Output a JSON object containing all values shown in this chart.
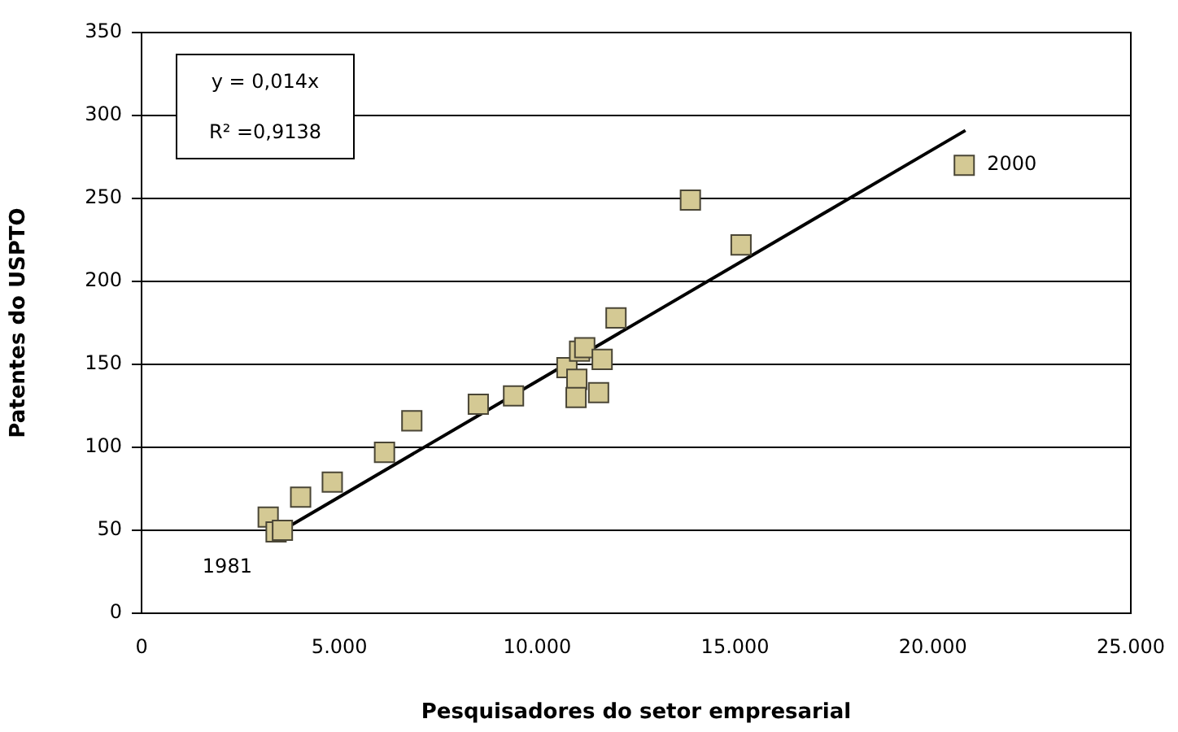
{
  "chart_data": {
    "type": "scatter",
    "xlabel": "Pesquisadores do setor empresarial",
    "ylabel": "Patentes do USPTO",
    "series": [
      {
        "type": "scatter",
        "color": "#d4c994",
        "marker": "square",
        "x": [
          3200,
          3400,
          3560,
          4020,
          4820,
          6140,
          6830,
          8510,
          9400,
          10750,
          11070,
          11200,
          11640,
          11000,
          10980,
          11550,
          11990,
          13870,
          15150,
          20790
        ],
        "values": [
          58,
          49,
          50,
          70,
          79,
          97,
          116,
          126,
          131,
          148,
          158,
          160,
          153,
          141,
          130,
          133,
          178,
          249,
          222,
          270
        ]
      },
      {
        "type": "line",
        "color": "#000000",
        "marker": "none",
        "line_style": "solid",
        "x": [
          3200,
          20820
        ],
        "values": [
          45,
          291
        ]
      }
    ],
    "xlim": [
      0,
      25000
    ],
    "xticks": [
      0,
      {
        "value": 5000,
        "label": "5.000"
      },
      {
        "value": 10000,
        "label": "10.000"
      },
      {
        "value": 15000,
        "label": "15.000"
      },
      {
        "value": 20000,
        "label": "20.000"
      },
      {
        "value": 25000,
        "label": "25.000"
      }
    ],
    "ylim": [
      0,
      350
    ],
    "yticks": [
      0,
      50,
      100,
      150,
      200,
      250,
      300,
      350
    ],
    "grid": "y",
    "legend": false,
    "annotations": [
      "y = 0,014x",
      "R² =0,9138",
      {
        "text": "1981",
        "x": 3400,
        "y": 49
      },
      {
        "text": "2000",
        "x": 20790,
        "y": 270
      }
    ]
  }
}
